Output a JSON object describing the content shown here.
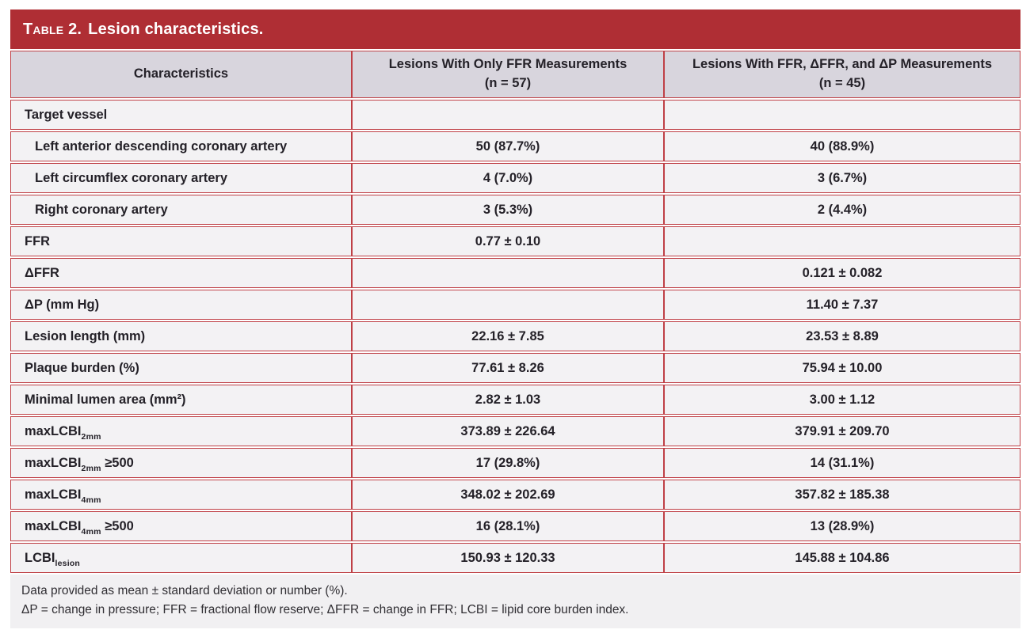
{
  "title": {
    "prefix": "Table 2.",
    "text": "Lesion characteristics."
  },
  "colors": {
    "header_bar": "#af2e34",
    "table_line": "#bf4046",
    "column_header_bg": "#d8d5dd",
    "row_bg": "#f3f2f4",
    "footnote_bg": "#f1f0f2",
    "text": "#242128"
  },
  "table": {
    "columns": [
      {
        "label": "Characteristics",
        "sub_label": ""
      },
      {
        "label": "Lesions With Only FFR Measurements",
        "sub_label": "(n = 57)"
      },
      {
        "label": "Lesions With FFR, ΔFFR, and ΔP Measurements",
        "sub_label": "(n = 45)"
      }
    ],
    "rows": [
      {
        "label": "Target vessel",
        "indent": false,
        "col2": "",
        "col3": ""
      },
      {
        "label": "Left anterior descending coronary artery",
        "indent": true,
        "col2": "50 (87.7%)",
        "col3": "40 (88.9%)"
      },
      {
        "label": "Left circumflex coronary artery",
        "indent": true,
        "col2": "4 (7.0%)",
        "col3": "3 (6.7%)"
      },
      {
        "label": "Right coronary artery",
        "indent": true,
        "col2": "3 (5.3%)",
        "col3": "2 (4.4%)"
      },
      {
        "label": "FFR",
        "indent": false,
        "col2": "0.77 ± 0.10",
        "col3": ""
      },
      {
        "label": "ΔFFR",
        "indent": false,
        "col2": "",
        "col3": "0.121 ± 0.082"
      },
      {
        "label": "ΔP (mm Hg)",
        "indent": false,
        "col2": "",
        "col3": "11.40 ± 7.37"
      },
      {
        "label": "Lesion length (mm)",
        "indent": false,
        "col2": "22.16 ± 7.85",
        "col3": "23.53 ± 8.89"
      },
      {
        "label": "Plaque burden (%)",
        "indent": false,
        "col2": "77.61 ± 8.26",
        "col3": "75.94 ± 10.00"
      },
      {
        "label": "Minimal lumen area (mm²)",
        "indent": false,
        "col2": "2.82 ± 1.03",
        "col3": "3.00 ± 1.12"
      },
      {
        "label": "maxLCBI",
        "sub": "2mm",
        "suffix": "",
        "indent": false,
        "col2": "373.89 ± 226.64",
        "col3": "379.91 ± 209.70"
      },
      {
        "label": "maxLCBI",
        "sub": "2mm",
        "suffix": " ≥500",
        "indent": false,
        "col2": "17 (29.8%)",
        "col3": "14 (31.1%)"
      },
      {
        "label": "maxLCBI",
        "sub": "4mm",
        "suffix": "",
        "indent": false,
        "col2": "348.02 ± 202.69",
        "col3": "357.82 ± 185.38"
      },
      {
        "label": "maxLCBI",
        "sub": "4mm",
        "suffix": " ≥500",
        "indent": false,
        "col2": "16 (28.1%)",
        "col3": "13 (28.9%)"
      },
      {
        "label": "LCBI",
        "sub": "lesion",
        "suffix": "",
        "indent": false,
        "col2": "150.93 ± 120.33",
        "col3": "145.88 ± 104.86"
      }
    ]
  },
  "footnotes": [
    "Data provided as mean ± standard deviation or number (%).",
    "ΔP = change in pressure; FFR = fractional flow reserve; ΔFFR = change in FFR; LCBI = lipid core burden index."
  ]
}
